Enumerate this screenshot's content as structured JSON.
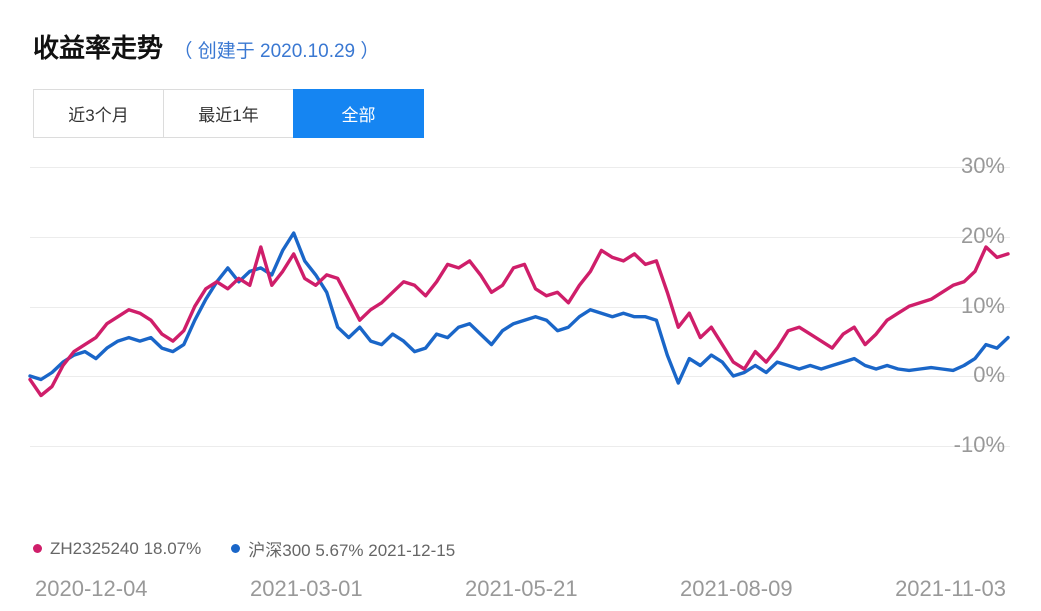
{
  "header": {
    "title": "收益率走势",
    "subtitle": "（ 创建于 2020.10.29 ）"
  },
  "tabs": {
    "items": [
      {
        "label": "近3个月",
        "active": false
      },
      {
        "label": "最近1年",
        "active": false
      },
      {
        "label": "全部",
        "active": true
      }
    ]
  },
  "legend": {
    "items": [
      {
        "label": "ZH2325240 18.07%",
        "color": "#cf1e6a"
      },
      {
        "label": "沪深300 5.67% 2021-12-15",
        "color": "#1a66c8"
      }
    ]
  },
  "colors": {
    "active_tab": "#1585f2",
    "subtitle_blue": "#3a78d2",
    "series_pink": "#cf1e6a",
    "series_blue": "#1a66c8",
    "grid": "#ececec",
    "axis_text": "#999999",
    "legend_text": "#666666"
  },
  "chart_data": {
    "type": "line",
    "title": "收益率走势",
    "subtitle": "创建于 2020.10.29",
    "x_tick_labels": [
      "2020-12-04",
      "2021-03-01",
      "2021-05-21",
      "2021-08-09",
      "2021-11-03"
    ],
    "y_tick_labels": [
      "30%",
      "20%",
      "10%",
      "0%",
      "-10%"
    ],
    "y_ticks": [
      30,
      20,
      10,
      0,
      -10
    ],
    "y_unit": "%",
    "ylim": [
      -13,
      33
    ],
    "grid": true,
    "legend_position": "bottom-left",
    "series": [
      {
        "name": "ZH2325240",
        "latest": "18.07%",
        "color": "#cf1e6a",
        "values": [
          -0.5,
          -2.8,
          -1.5,
          1.5,
          3.5,
          4.5,
          5.5,
          7.5,
          8.5,
          9.5,
          9.0,
          8.0,
          6.0,
          5.0,
          6.5,
          10.0,
          12.5,
          13.5,
          12.5,
          14.0,
          13.0,
          18.5,
          13.0,
          15.0,
          17.5,
          14.0,
          13.0,
          14.5,
          14.0,
          11.0,
          8.0,
          9.5,
          10.5,
          12.0,
          13.5,
          13.0,
          11.5,
          13.5,
          16.0,
          15.5,
          16.5,
          14.5,
          12.0,
          13.0,
          15.5,
          16.0,
          12.5,
          11.5,
          12.0,
          10.5,
          13.0,
          15.0,
          18.0,
          17.0,
          16.5,
          17.5,
          16.0,
          16.5,
          12.0,
          7.0,
          9.0,
          5.5,
          7.0,
          4.5,
          2.0,
          1.0,
          3.5,
          2.0,
          4.0,
          6.5,
          7.0,
          6.0,
          5.0,
          4.0,
          6.0,
          7.0,
          4.5,
          6.0,
          8.0,
          9.0,
          10.0,
          10.5,
          11.0,
          12.0,
          13.0,
          13.5,
          15.0,
          18.5,
          17.0,
          17.5
        ]
      },
      {
        "name": "沪深300",
        "latest": "5.67%",
        "latest_date": "2021-12-15",
        "color": "#1a66c8",
        "values": [
          0.0,
          -0.5,
          0.5,
          2.0,
          3.0,
          3.5,
          2.5,
          4.0,
          5.0,
          5.5,
          5.0,
          5.5,
          4.0,
          3.5,
          4.5,
          8.0,
          11.0,
          13.5,
          15.5,
          13.5,
          15.0,
          15.5,
          14.5,
          18.0,
          20.5,
          16.5,
          14.5,
          12.0,
          7.0,
          5.5,
          7.0,
          5.0,
          4.5,
          6.0,
          5.0,
          3.5,
          4.0,
          6.0,
          5.5,
          7.0,
          7.5,
          6.0,
          4.5,
          6.5,
          7.5,
          8.0,
          8.5,
          8.0,
          6.5,
          7.0,
          8.5,
          9.5,
          9.0,
          8.5,
          9.0,
          8.5,
          8.5,
          8.0,
          3.0,
          -1.0,
          2.5,
          1.5,
          3.0,
          2.0,
          0.0,
          0.5,
          1.5,
          0.5,
          2.0,
          1.5,
          1.0,
          1.5,
          1.0,
          1.5,
          2.0,
          2.5,
          1.5,
          1.0,
          1.5,
          1.0,
          0.8,
          1.0,
          1.2,
          1.0,
          0.8,
          1.5,
          2.5,
          4.5,
          4.0,
          5.5
        ]
      }
    ]
  }
}
